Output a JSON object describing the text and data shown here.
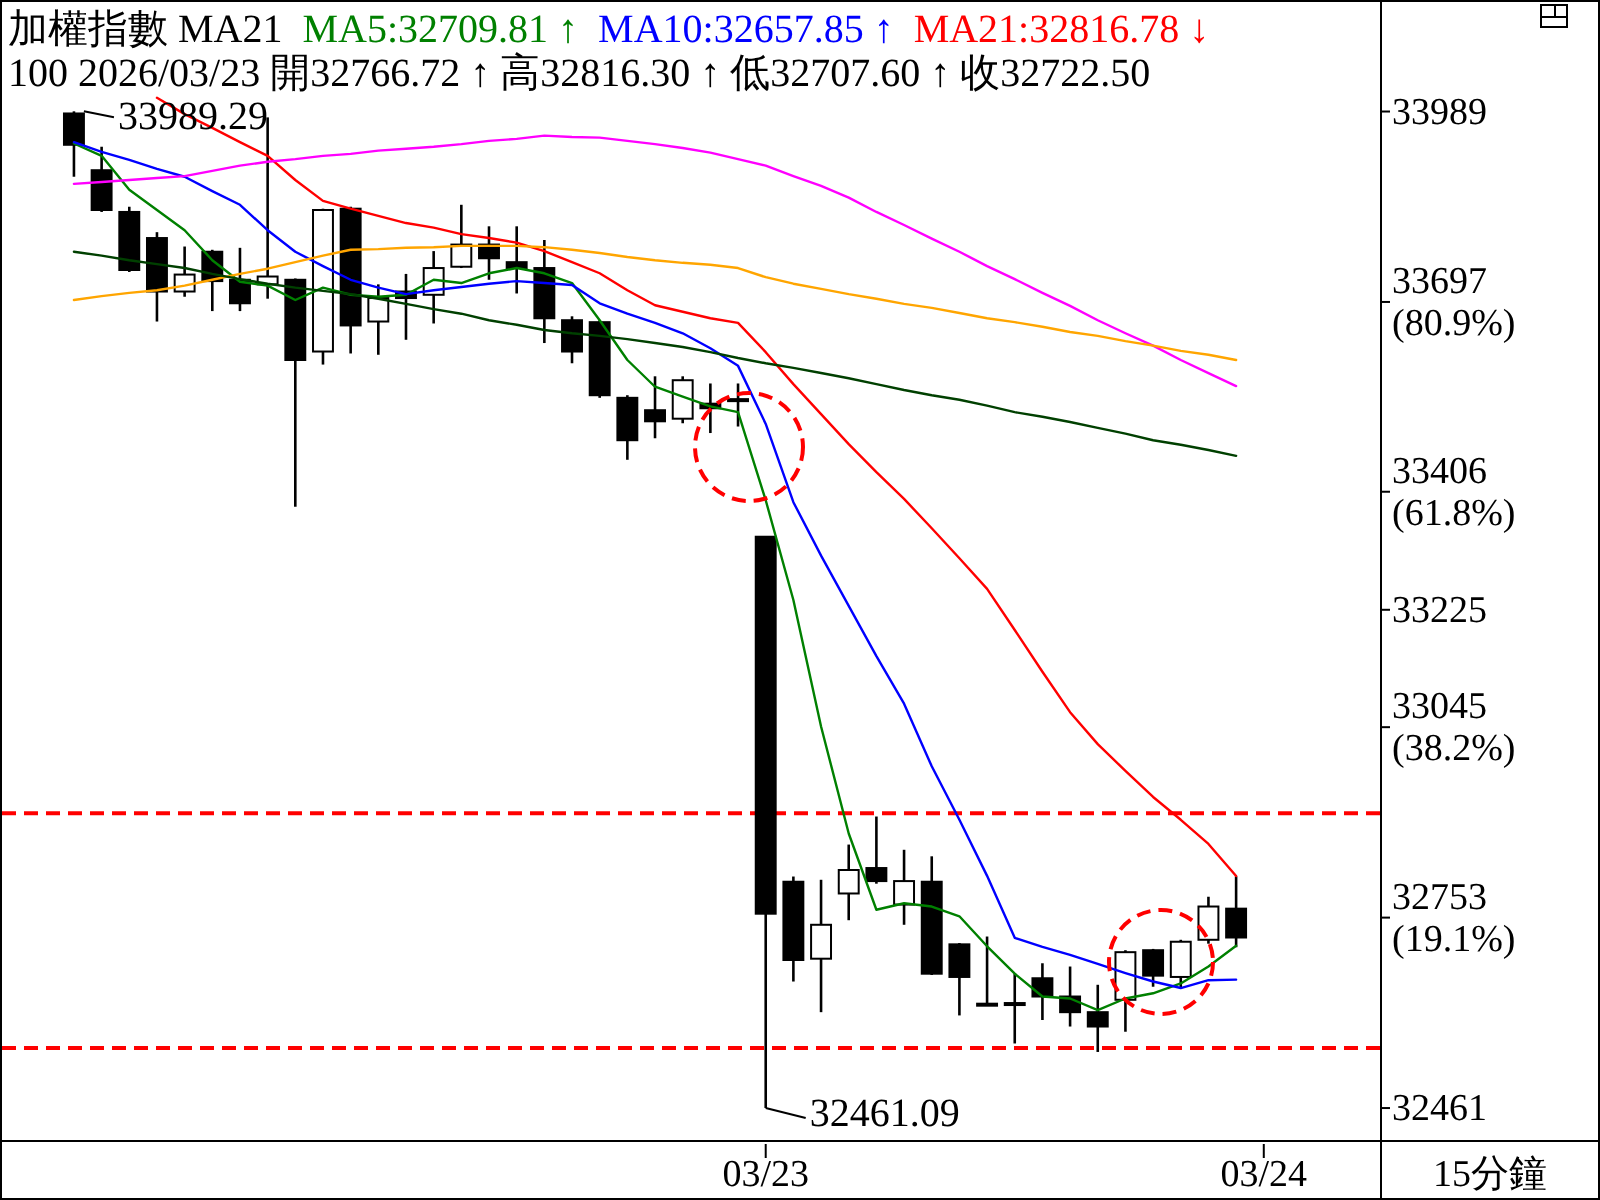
{
  "chart_data": {
    "type": "candlestick",
    "title": "加權指數 MA21",
    "subtitle": "100 2026/03/23 開32766.72 ↑ 高32816.30 ↑ 低32707.60 ↑ 收32722.50",
    "xlabel": "15分鐘",
    "categories": [
      null,
      null,
      null,
      null,
      null,
      null,
      null,
      null,
      null,
      null,
      null,
      null,
      null,
      null,
      null,
      null,
      null,
      null,
      null,
      null,
      null,
      null,
      null,
      null,
      null,
      "03/23",
      null,
      null,
      null,
      null,
      null,
      null,
      null,
      null,
      null,
      null,
      null,
      null,
      null,
      null,
      null,
      null,
      null,
      "03/24"
    ],
    "ohlc": [
      [
        33986,
        33989.29,
        33889,
        33938
      ],
      [
        33899,
        33935,
        33835,
        33838
      ],
      [
        33835,
        33843,
        33743,
        33746
      ],
      [
        33795,
        33804,
        33667,
        33713
      ],
      [
        33713,
        33782,
        33705,
        33739
      ],
      [
        33774,
        33777,
        33683,
        33729
      ],
      [
        33731,
        33780,
        33683,
        33695
      ],
      [
        33724,
        33980,
        33702,
        33736
      ],
      [
        33731,
        33733,
        33383,
        33608
      ],
      [
        33621,
        33840,
        33601,
        33838
      ],
      [
        33840,
        33843,
        33618,
        33661
      ],
      [
        33667,
        33724,
        33616,
        33703
      ],
      [
        33713,
        33740,
        33639,
        33703
      ],
      [
        33708,
        33775,
        33664,
        33749
      ],
      [
        33751,
        33846,
        33749,
        33785
      ],
      [
        33785,
        33813,
        33731,
        33764
      ],
      [
        33758,
        33813,
        33710,
        33749
      ],
      [
        33749,
        33792,
        33634,
        33672
      ],
      [
        33669,
        33675,
        33603,
        33621
      ],
      [
        33666,
        33669,
        33550,
        33554
      ],
      [
        33550,
        33554,
        33455,
        33485
      ],
      [
        33531,
        33583,
        33488,
        33514
      ],
      [
        33518,
        33583,
        33511,
        33577
      ],
      [
        33541,
        33572,
        33496,
        33534
      ],
      [
        33548,
        33572,
        33506,
        33545
      ],
      [
        33337,
        33337,
        32461.09,
        32759
      ],
      [
        32808,
        32816,
        32655,
        32688
      ],
      [
        32690,
        32811,
        32608,
        32742
      ],
      [
        32790,
        32865,
        32749,
        32826
      ],
      [
        32829,
        32908,
        32805,
        32809
      ],
      [
        32773,
        32857,
        32742,
        32809
      ],
      [
        32808,
        32847,
        32665,
        32667
      ],
      [
        32712,
        32714,
        32603,
        32662
      ],
      [
        32621,
        32724,
        32619,
        32620
      ],
      [
        32622,
        32667,
        32560,
        32621
      ],
      [
        32660,
        32683,
        32596,
        32632
      ],
      [
        32632,
        32678,
        32586,
        32608
      ],
      [
        32608,
        32650,
        32547,
        32586
      ],
      [
        32627,
        32703,
        32578,
        32700
      ],
      [
        32703,
        32705,
        32647,
        32664
      ],
      [
        32662,
        32719,
        32644,
        32716
      ],
      [
        32719,
        32785,
        32713,
        32770
      ],
      [
        32766.72,
        32816.3,
        32707.6,
        32722.5
      ],
      null
    ],
    "series": [
      {
        "type": "line",
        "name": "MA5:32709.81 ↑",
        "color": "#008000",
        "values": [
          33940,
          33921,
          33869,
          33838,
          33807,
          33761,
          33728,
          33722,
          33700,
          33719,
          33708,
          33705,
          33708,
          33731,
          33726,
          33741,
          33749,
          33741,
          33726,
          33669,
          33608,
          33567,
          33552,
          33537,
          33528,
          33393,
          33240,
          33046,
          32882,
          32765,
          32775,
          32770,
          32755,
          32709,
          32667,
          32632,
          32629,
          32611,
          32629,
          32637,
          32652,
          32678,
          32709.81,
          null
        ]
      },
      {
        "type": "line",
        "name": "MA10:32657.85 ↑",
        "color": "#0000ff",
        "values": [
          33942,
          33927,
          33915,
          33901,
          33889,
          33867,
          33846,
          33807,
          33774,
          33752,
          33731,
          33719,
          33709,
          33715,
          33720,
          33725,
          33729,
          33726,
          33723,
          33695,
          33679,
          33665,
          33649,
          33626,
          33599,
          33510,
          33390,
          33308,
          33231,
          33154,
          33081,
          32985,
          32903,
          32817,
          32722,
          32708,
          32696,
          32682,
          32668,
          32655,
          32645,
          32657,
          32657.85,
          null
        ]
      },
      {
        "type": "line",
        "name": "MA21:32816.78 ↓",
        "color": "#ff0000",
        "values": [
          null,
          null,
          null,
          34010,
          33985,
          33964,
          33942,
          33921,
          33884,
          33852,
          33840,
          33829,
          33818,
          33811,
          33801,
          33795,
          33788,
          33775,
          33758,
          33741,
          33715,
          33692,
          33682,
          33672,
          33665,
          33620,
          33571,
          33525,
          33479,
          33436,
          33395,
          33350,
          33304,
          33257,
          33194,
          33130,
          33068,
          33019,
          32978,
          32938,
          32903,
          32866,
          32816.78,
          null
        ]
      },
      {
        "type": "line",
        "color": "#ff00ff",
        "values": [
          33878,
          33881,
          33884,
          33887,
          33890,
          33898,
          33906,
          33912,
          33916,
          33921,
          33924,
          33929,
          33932,
          33935,
          33939,
          33944,
          33947,
          33952,
          33950,
          33949,
          33944,
          33939,
          33933,
          33926,
          33916,
          33906,
          33890,
          33875,
          33857,
          33835,
          33815,
          33794,
          33774,
          33752,
          33732,
          33711,
          33691,
          33669,
          33649,
          33630,
          33608,
          33588,
          33568,
          null
        ]
      },
      {
        "type": "line",
        "color": "#ffa500",
        "values": [
          33700,
          33706,
          33711,
          33715,
          33722,
          33731,
          33740,
          33748,
          33758,
          33768,
          33777,
          33778,
          33780,
          33781,
          33783,
          33783,
          33783,
          33781,
          33777,
          33772,
          33766,
          33761,
          33757,
          33754,
          33749,
          33735,
          33725,
          33717,
          33709,
          33702,
          33694,
          33688,
          33680,
          33672,
          33666,
          33659,
          33651,
          33645,
          33637,
          33630,
          33622,
          33616,
          33608,
          null
        ]
      },
      {
        "type": "line",
        "color": "#004000",
        "values": [
          33774,
          33768,
          33761,
          33755,
          33749,
          33740,
          33732,
          33725,
          33719,
          33714,
          33709,
          33702,
          33694,
          33686,
          33679,
          33669,
          33662,
          33654,
          33649,
          33645,
          33640,
          33634,
          33628,
          33620,
          33611,
          33603,
          33596,
          33588,
          33580,
          33571,
          33562,
          33554,
          33547,
          33538,
          33528,
          33521,
          33513,
          33504,
          33495,
          33485,
          33478,
          33470,
          33461,
          null
        ]
      }
    ],
    "ylim": [
      32412,
      34160
    ],
    "yticks": [
      33989,
      {
        "value": 33697,
        "label": "33697 (80.9%)"
      },
      {
        "value": 33406,
        "label": "33406 (61.8%)"
      },
      33225,
      {
        "value": 33045,
        "label": "33045 (38.2%)"
      },
      {
        "value": 32753,
        "label": "32753 (19.1%)"
      },
      32461
    ],
    "ref_lines": [
      {
        "axis": "y",
        "value": 32913,
        "color": "#ff0000",
        "line_style": "dashed"
      },
      {
        "axis": "y",
        "value": 32553,
        "color": "#ff0000",
        "line_style": "dashed"
      }
    ],
    "annotations": [
      {
        "text": "33989.29",
        "y": 33989.29
      },
      {
        "text": "32461.09",
        "x": "03/23",
        "y": 32461.09
      }
    ],
    "legend": "top"
  }
}
